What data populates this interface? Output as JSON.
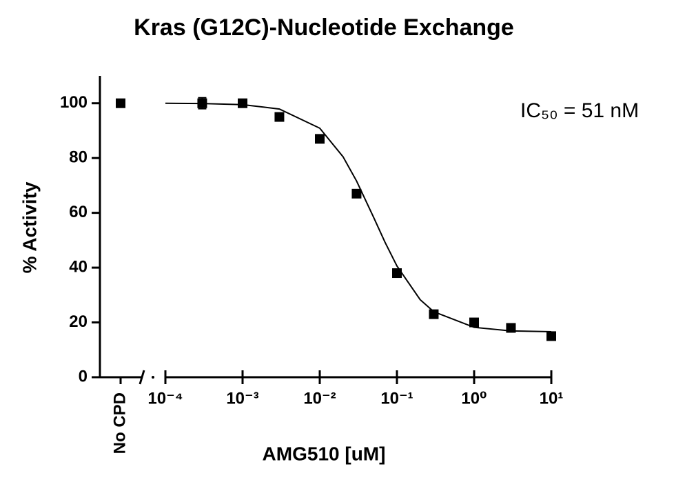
{
  "chart_data": {
    "type": "scatter",
    "title": "Kras (G12C)-Nucleotide Exchange",
    "x_label": "AMG510 [uM]",
    "y_label": "% Activity",
    "annotation": "IC₅₀ = 51 nM",
    "x_scale": "log",
    "color": "#000000",
    "control": {
      "label": "No CPD",
      "value": 100
    },
    "x": [
      0.0003,
      0.001,
      0.003,
      0.01,
      0.03,
      0.1,
      0.3,
      1,
      3,
      10
    ],
    "values": [
      100,
      100,
      95,
      87,
      67,
      38,
      23,
      20,
      18,
      15
    ],
    "errors": [
      2,
      null,
      null,
      null,
      null,
      null,
      null,
      null,
      null,
      null
    ],
    "fit": {
      "x": [
        0.0001,
        0.0003,
        0.001,
        0.003,
        0.01,
        0.02,
        0.03,
        0.05,
        0.07,
        0.1,
        0.2,
        0.3,
        1,
        3,
        10
      ],
      "values": [
        100,
        99.9,
        99.5,
        97.9,
        90.9,
        80.5,
        71.6,
        58.3,
        49.3,
        40.6,
        28.3,
        23.9,
        18.2,
        16.9,
        16.6
      ]
    },
    "xlim": [
      0.0001,
      10
    ],
    "xticks": [
      {
        "value": 0.0001,
        "label": "10⁻⁴"
      },
      {
        "value": 0.001,
        "label": "10⁻³"
      },
      {
        "value": 0.01,
        "label": "10⁻²"
      },
      {
        "value": 0.1,
        "label": "10⁻¹"
      },
      {
        "value": 1,
        "label": "10⁰"
      },
      {
        "value": 10,
        "label": "10¹"
      }
    ],
    "ylim": [
      0,
      110
    ],
    "yticks": [
      0,
      20,
      40,
      60,
      80,
      100
    ],
    "grid": false
  }
}
